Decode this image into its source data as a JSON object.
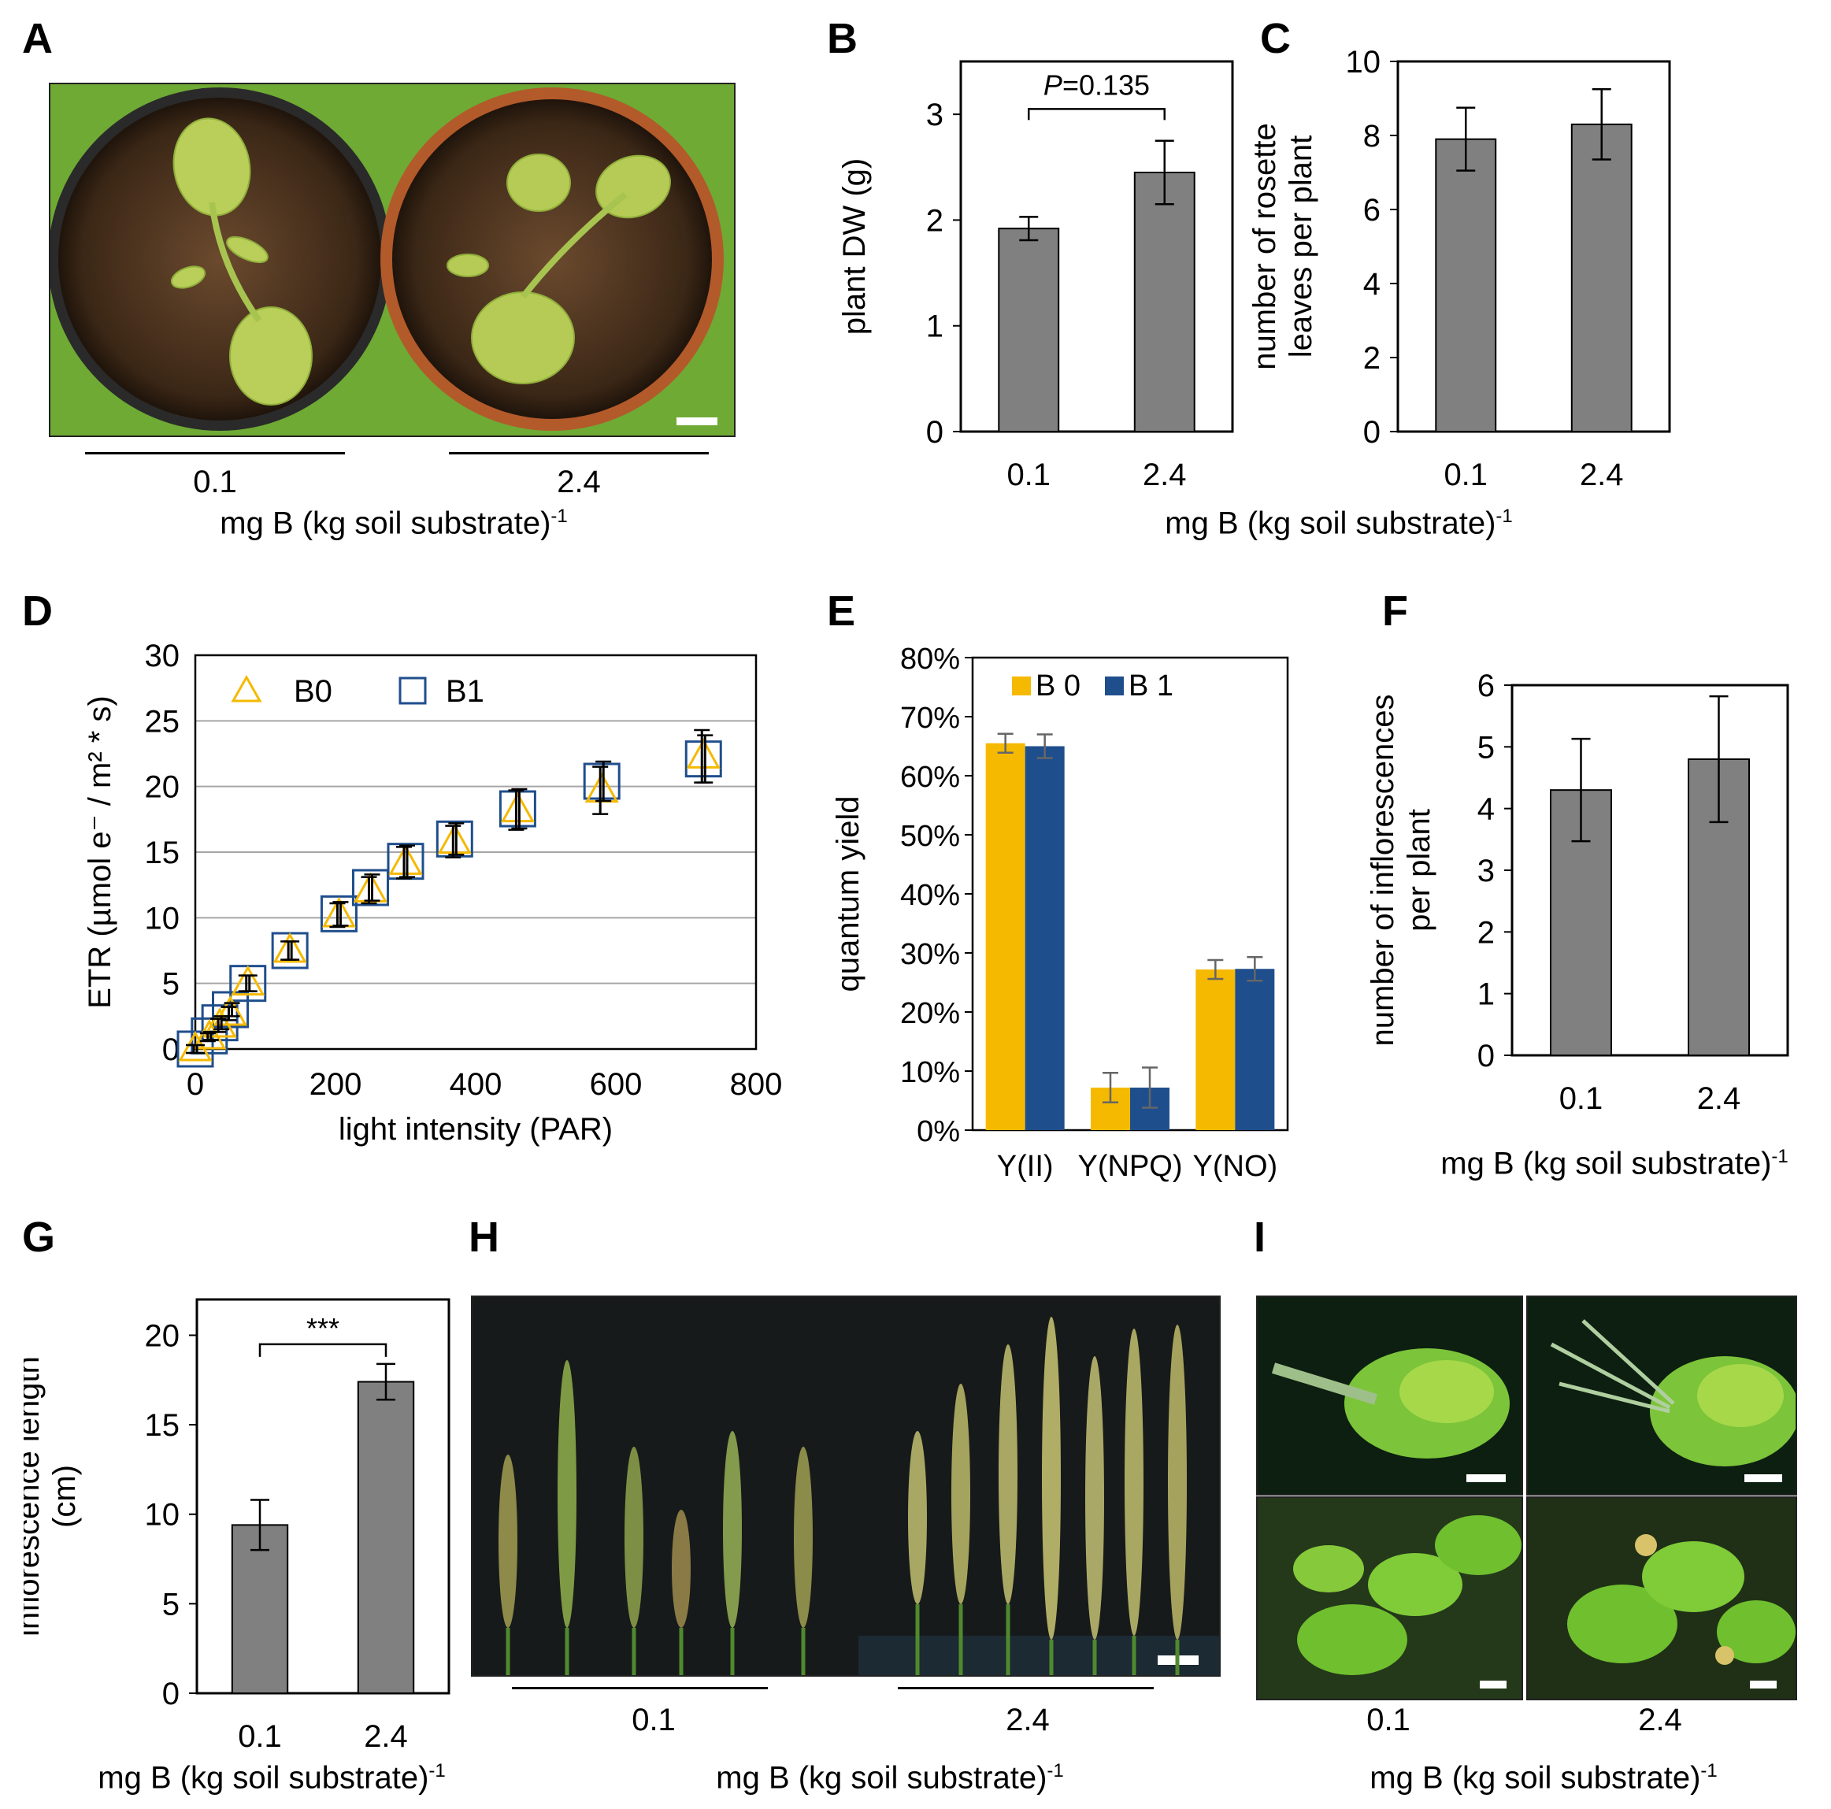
{
  "panels": {
    "A": {
      "letter": "A",
      "photo_labels": [
        "0.1",
        "2.4"
      ],
      "xlabel": "mg B (kg soil substrate)",
      "xlabel_sup": "-1"
    },
    "B": {
      "letter": "B"
    },
    "C": {
      "letter": "C"
    },
    "BC_xlabel": "mg B (kg soil substrate)",
    "BC_xlabel_sup": "-1",
    "D": {
      "letter": "D"
    },
    "E": {
      "letter": "E"
    },
    "F": {
      "letter": "F",
      "xlabel": "mg B (kg soil substrate)",
      "xlabel_sup": "-1"
    },
    "G": {
      "letter": "G",
      "xlabel": "mg B (kg soil substrate)",
      "xlabel_sup": "-1"
    },
    "H": {
      "letter": "H",
      "photo_labels": [
        "0.1",
        "2.4"
      ],
      "xlabel": "mg B (kg soil substrate)",
      "xlabel_sup": "-1"
    },
    "I": {
      "letter": "I",
      "photo_labels": [
        "0.1",
        "2.4"
      ],
      "xlabel": "mg B (kg soil substrate)",
      "xlabel_sup": "-1"
    }
  },
  "colors": {
    "bar_gray": "#808080",
    "b0": "#F5B900",
    "b1": "#1F4E8C",
    "grid": "#a6a6a6"
  },
  "chart_data": [
    {
      "id": "B",
      "type": "bar",
      "categories": [
        "0.1",
        "2.4"
      ],
      "values": [
        1.92,
        2.45
      ],
      "errors": [
        0.11,
        0.3
      ],
      "ylabel": "plant DW (g)",
      "ylim": [
        0,
        3.5
      ],
      "yticks": [
        0,
        1,
        2,
        3
      ],
      "annotation": {
        "label_italic": "P",
        "label_rest": "=0.135"
      }
    },
    {
      "id": "C",
      "type": "bar",
      "categories": [
        "0.1",
        "2.4"
      ],
      "values": [
        7.9,
        8.3
      ],
      "errors": [
        0.85,
        0.95
      ],
      "ylabel_lines": [
        "number of rosette",
        "leaves per plant"
      ],
      "ylim": [
        0,
        10
      ],
      "yticks": [
        0,
        2,
        4,
        6,
        8,
        10
      ]
    },
    {
      "id": "D",
      "type": "scatter",
      "xlabel": "light intensity (PAR)",
      "ylabel": "ETR (µmol e⁻ / m² * s)",
      "xlim": [
        0,
        800
      ],
      "ylim": [
        0,
        30
      ],
      "xticks": [
        0,
        200,
        400,
        600,
        800
      ],
      "yticks": [
        0,
        5,
        10,
        15,
        20,
        25,
        30
      ],
      "grid": true,
      "legend_position": "top-left",
      "series": [
        {
          "name": "B0",
          "marker": "triangle",
          "x": [
            0,
            20,
            35,
            50,
            75,
            135,
            205,
            250,
            300,
            370,
            460,
            580,
            725
          ],
          "y": [
            0,
            0.9,
            1.8,
            2.7,
            5.0,
            7.5,
            10.2,
            12.1,
            14.2,
            15.8,
            18.2,
            19.7,
            22.3
          ],
          "err": [
            0.3,
            0.3,
            0.5,
            0.5,
            0.6,
            0.7,
            0.9,
            1.0,
            1.2,
            1.2,
            1.5,
            1.8,
            2.0
          ]
        },
        {
          "name": "B1",
          "marker": "square",
          "x": [
            0,
            20,
            35,
            50,
            75,
            135,
            205,
            250,
            300,
            370,
            460,
            580,
            725
          ],
          "y": [
            0,
            1.0,
            2.0,
            3.0,
            5.0,
            7.5,
            10.3,
            12.3,
            14.3,
            16.0,
            18.3,
            20.4,
            22.1
          ],
          "err": [
            0.3,
            0.3,
            0.5,
            0.5,
            0.6,
            0.7,
            0.9,
            1.0,
            1.2,
            1.2,
            1.5,
            1.5,
            1.8
          ]
        }
      ]
    },
    {
      "id": "E",
      "type": "bar",
      "categories": [
        "Y(II)",
        "Y(NPQ)",
        "Y(NO)"
      ],
      "ylabel": "quantum yield",
      "ylim": [
        0,
        0.8
      ],
      "yticks": [
        "0%",
        "10%",
        "20%",
        "30%",
        "40%",
        "50%",
        "60%",
        "70%",
        "80%"
      ],
      "legend_position": "top-left",
      "series": [
        {
          "name": "B 0",
          "values": [
            0.655,
            0.072,
            0.272
          ],
          "errors": [
            0.016,
            0.025,
            0.016
          ]
        },
        {
          "name": "B 1",
          "values": [
            0.65,
            0.072,
            0.273
          ],
          "errors": [
            0.02,
            0.034,
            0.02
          ]
        }
      ]
    },
    {
      "id": "F",
      "type": "bar",
      "categories": [
        "0.1",
        "2.4"
      ],
      "values": [
        4.3,
        4.8
      ],
      "errors": [
        0.83,
        1.02
      ],
      "ylabel_lines": [
        "number of inflorescences",
        "per plant"
      ],
      "ylim": [
        0,
        6
      ],
      "yticks": [
        0,
        1,
        2,
        3,
        4,
        5,
        6
      ]
    },
    {
      "id": "G",
      "type": "bar",
      "categories": [
        "0.1",
        "2.4"
      ],
      "values": [
        9.4,
        17.4
      ],
      "errors": [
        1.4,
        1.0
      ],
      "ylabel_lines": [
        "inflorescence length",
        "(cm)"
      ],
      "ylim": [
        0,
        22
      ],
      "yticks": [
        0,
        5,
        10,
        15,
        20
      ],
      "annotation": {
        "label": "***"
      }
    }
  ]
}
